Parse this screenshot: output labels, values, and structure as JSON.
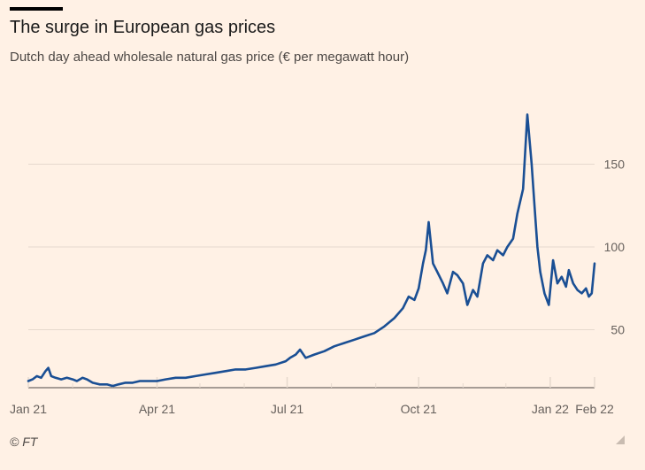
{
  "header": {
    "title": "The surge in European gas prices",
    "subtitle": "Dutch day ahead wholesale natural gas price (€ per megawatt hour)"
  },
  "footer": {
    "source": "© FT"
  },
  "colors": {
    "background": "#fff1e5",
    "line": "#1a4f94",
    "grid": "#e6d9ce",
    "axis": "#4d4845"
  },
  "chart_data": {
    "type": "line",
    "title": "The surge in European gas prices",
    "subtitle": "Dutch day ahead wholesale natural gas price (€ per megawatt hour)",
    "xlabel": "",
    "ylabel": "",
    "x_range": [
      "2021-01-01",
      "2022-02-01"
    ],
    "ylim": [
      15,
      185
    ],
    "y_ticks": [
      50,
      100,
      150
    ],
    "y_tick_labels": [
      "50",
      "100",
      "150"
    ],
    "x_ticks": [
      "2021-01-01",
      "2021-04-01",
      "2021-07-01",
      "2021-10-01",
      "2022-01-01",
      "2022-02-01"
    ],
    "x_tick_labels": [
      "Jan 21",
      "Apr 21",
      "Jul 21",
      "Oct 21",
      "Jan 22",
      "Feb 22"
    ],
    "grid": true,
    "legend": "none",
    "series": [
      {
        "x": [
          "2021-01-01",
          "2021-01-04",
          "2021-01-07",
          "2021-01-10",
          "2021-01-13",
          "2021-01-15",
          "2021-01-17",
          "2021-01-20",
          "2021-01-24",
          "2021-01-28",
          "2021-02-01",
          "2021-02-04",
          "2021-02-08",
          "2021-02-11",
          "2021-02-15",
          "2021-02-20",
          "2021-02-25",
          "2021-03-01",
          "2021-03-05",
          "2021-03-10",
          "2021-03-15",
          "2021-03-20",
          "2021-03-25",
          "2021-04-01",
          "2021-04-07",
          "2021-04-14",
          "2021-04-21",
          "2021-04-28",
          "2021-05-05",
          "2021-05-12",
          "2021-05-19",
          "2021-05-26",
          "2021-06-02",
          "2021-06-09",
          "2021-06-16",
          "2021-06-23",
          "2021-06-30",
          "2021-07-03",
          "2021-07-07",
          "2021-07-10",
          "2021-07-14",
          "2021-07-20",
          "2021-07-27",
          "2021-08-03",
          "2021-08-10",
          "2021-08-17",
          "2021-08-24",
          "2021-08-31",
          "2021-09-07",
          "2021-09-14",
          "2021-09-20",
          "2021-09-24",
          "2021-09-28",
          "2021-10-01",
          "2021-10-04",
          "2021-10-06",
          "2021-10-08",
          "2021-10-11",
          "2021-10-14",
          "2021-10-18",
          "2021-10-21",
          "2021-10-25",
          "2021-10-28",
          "2021-11-01",
          "2021-11-04",
          "2021-11-08",
          "2021-11-11",
          "2021-11-15",
          "2021-11-18",
          "2021-11-22",
          "2021-11-25",
          "2021-11-29",
          "2021-12-02",
          "2021-12-06",
          "2021-12-09",
          "2021-12-13",
          "2021-12-16",
          "2021-12-19",
          "2021-12-21",
          "2021-12-23",
          "2021-12-25",
          "2021-12-28",
          "2021-12-31",
          "2022-01-03",
          "2022-01-06",
          "2022-01-09",
          "2022-01-12",
          "2022-01-14",
          "2022-01-17",
          "2022-01-20",
          "2022-01-23",
          "2022-01-26",
          "2022-01-28",
          "2022-01-30",
          "2022-02-01"
        ],
        "values": [
          19,
          20,
          22,
          21,
          25,
          27,
          22,
          21,
          20,
          21,
          20,
          19,
          21,
          20,
          18,
          17,
          17,
          16,
          17,
          18,
          18,
          19,
          19,
          19,
          20,
          21,
          21,
          22,
          23,
          24,
          25,
          26,
          26,
          27,
          28,
          29,
          31,
          33,
          35,
          38,
          33,
          35,
          37,
          40,
          42,
          44,
          46,
          48,
          52,
          57,
          63,
          70,
          68,
          75,
          90,
          98,
          115,
          90,
          85,
          78,
          72,
          85,
          83,
          78,
          65,
          74,
          70,
          90,
          95,
          92,
          98,
          95,
          100,
          105,
          120,
          135,
          180,
          150,
          125,
          100,
          85,
          72,
          65,
          92,
          78,
          82,
          76,
          86,
          78,
          74,
          72,
          75,
          70,
          72,
          90
        ]
      }
    ]
  }
}
